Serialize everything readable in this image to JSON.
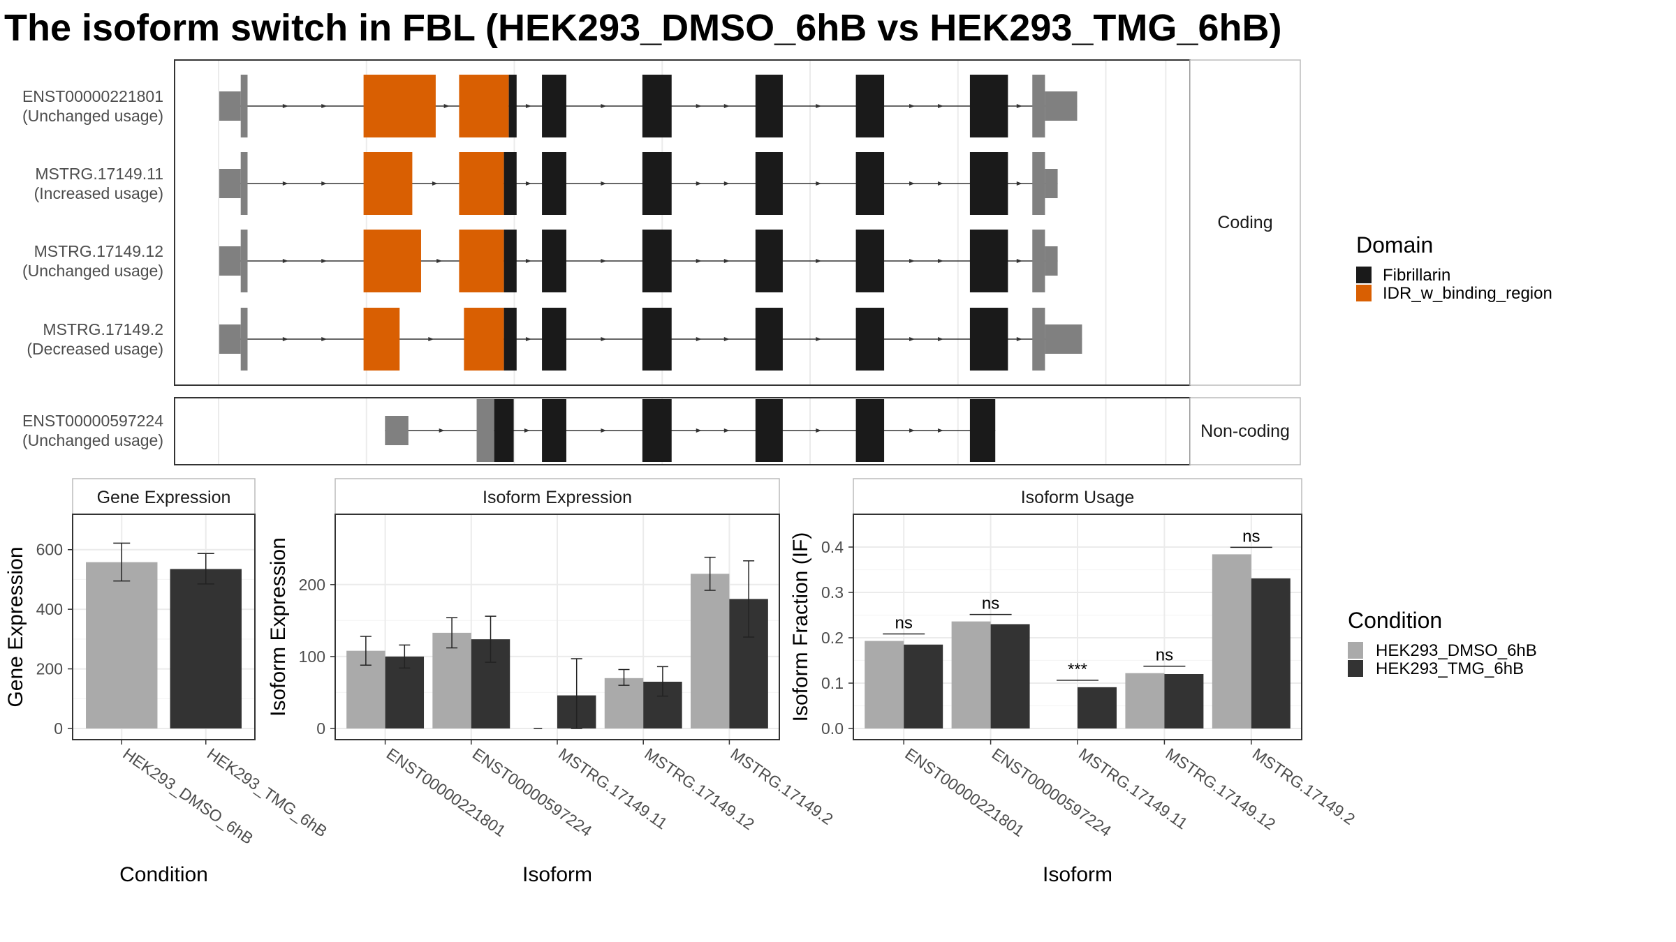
{
  "title": "The isoform switch in FBL (HEK293_DMSO_6hB vs HEK293_TMG_6hB)",
  "colors": {
    "fibrillarin": "#1a1a1a",
    "idr": "#d95f02",
    "utr": "#808080",
    "dmso": "#aaaaaa",
    "tmg": "#333333"
  },
  "structure": {
    "coding_label": "Coding",
    "noncoding_label": "Non-coding",
    "transcripts": [
      {
        "id": "ENST00000221801",
        "usage": "(Unchanged usage)",
        "group": "coding",
        "utr5": [
          [
            0,
            0.022
          ],
          [
            0.022,
            0.029
          ]
        ],
        "idr": [
          [
            0.148,
            0.222
          ],
          [
            0.246,
            0.297
          ]
        ],
        "cds": [
          [
            0.297,
            0.305
          ],
          [
            0.331,
            0.356
          ],
          [
            0.434,
            0.464
          ],
          [
            0.55,
            0.578
          ],
          [
            0.653,
            0.682
          ],
          [
            0.77,
            0.809
          ]
        ],
        "utr3": [
          [
            0.834,
            0.847
          ],
          [
            0.847,
            0.88
          ]
        ]
      },
      {
        "id": "MSTRG.17149.11",
        "usage": "(Increased usage)",
        "group": "coding",
        "utr5": [
          [
            0,
            0.022
          ],
          [
            0.022,
            0.029
          ]
        ],
        "idr": [
          [
            0.148,
            0.198
          ],
          [
            0.246,
            0.292
          ]
        ],
        "cds": [
          [
            0.292,
            0.305
          ],
          [
            0.331,
            0.356
          ],
          [
            0.434,
            0.464
          ],
          [
            0.55,
            0.578
          ],
          [
            0.653,
            0.682
          ],
          [
            0.77,
            0.809
          ]
        ],
        "utr3": [
          [
            0.834,
            0.847
          ],
          [
            0.847,
            0.86
          ]
        ]
      },
      {
        "id": "MSTRG.17149.12",
        "usage": "(Unchanged usage)",
        "group": "coding",
        "utr5": [
          [
            0,
            0.022
          ],
          [
            0.022,
            0.029
          ]
        ],
        "idr": [
          [
            0.148,
            0.207
          ],
          [
            0.246,
            0.292
          ]
        ],
        "cds": [
          [
            0.292,
            0.305
          ],
          [
            0.331,
            0.356
          ],
          [
            0.434,
            0.464
          ],
          [
            0.55,
            0.578
          ],
          [
            0.653,
            0.682
          ],
          [
            0.77,
            0.809
          ]
        ],
        "utr3": [
          [
            0.834,
            0.847
          ],
          [
            0.847,
            0.86
          ]
        ]
      },
      {
        "id": "MSTRG.17149.2",
        "usage": "(Decreased usage)",
        "group": "coding",
        "utr5": [
          [
            0,
            0.022
          ],
          [
            0.022,
            0.029
          ]
        ],
        "idr": [
          [
            0.148,
            0.185
          ],
          [
            0.251,
            0.292
          ]
        ],
        "cds": [
          [
            0.292,
            0.305
          ],
          [
            0.331,
            0.356
          ],
          [
            0.434,
            0.464
          ],
          [
            0.55,
            0.578
          ],
          [
            0.653,
            0.682
          ],
          [
            0.77,
            0.809
          ]
        ],
        "utr3": [
          [
            0.834,
            0.847
          ],
          [
            0.847,
            0.885
          ]
        ]
      },
      {
        "id": "ENST00000597224",
        "usage": "(Unchanged usage)",
        "group": "noncoding",
        "utr5": [
          [
            0.17,
            0.194
          ],
          [
            0.264,
            0.282
          ]
        ],
        "idr": [],
        "cds": [
          [
            0.282,
            0.302
          ],
          [
            0.331,
            0.356
          ],
          [
            0.434,
            0.464
          ],
          [
            0.55,
            0.578
          ],
          [
            0.653,
            0.682
          ],
          [
            0.77,
            0.796
          ]
        ],
        "utr3": []
      }
    ]
  },
  "legend_domain": {
    "title": "Domain",
    "items": [
      "Fibrillarin",
      "IDR_w_binding_region"
    ]
  },
  "legend_condition": {
    "title": "Condition",
    "items": [
      "HEK293_DMSO_6hB",
      "HEK293_TMG_6hB"
    ]
  },
  "chart_data": [
    {
      "type": "bar",
      "title": "Gene Expression",
      "xlabel": "Condition",
      "ylabel": "Gene Expression",
      "categories": [
        "HEK293_DMSO_6hB",
        "HEK293_TMG_6hB"
      ],
      "values": [
        558,
        535
      ],
      "error_low": [
        495,
        485
      ],
      "error_high": [
        622,
        587
      ],
      "ylim": [
        0,
        700
      ],
      "yticks": [
        0,
        200,
        400,
        600
      ]
    },
    {
      "type": "bar",
      "title": "Isoform Expression",
      "xlabel": "Isoform",
      "ylabel": "Isoform Expression",
      "categories": [
        "ENST00000221801",
        "ENST00000597224",
        "MSTRG.17149.11",
        "MSTRG.17149.12",
        "MSTRG.17149.2"
      ],
      "series": [
        {
          "values": [
            108,
            133,
            0,
            70,
            215
          ],
          "error_low": [
            88,
            112,
            0,
            60,
            192
          ],
          "error_high": [
            128,
            154,
            0,
            82,
            238
          ]
        },
        {
          "values": [
            100,
            124,
            46,
            65,
            180
          ],
          "error_low": [
            84,
            92,
            0,
            45,
            127
          ],
          "error_high": [
            116,
            156,
            97,
            86,
            233
          ]
        }
      ],
      "ylim": [
        0,
        290
      ],
      "yticks": [
        0,
        100,
        200
      ]
    },
    {
      "type": "bar",
      "title": "Isoform Usage",
      "xlabel": "Isoform",
      "ylabel": "Isoform Fraction (IF)",
      "categories": [
        "ENST00000221801",
        "ENST00000597224",
        "MSTRG.17149.11",
        "MSTRG.17149.12",
        "MSTRG.17149.2"
      ],
      "series": [
        {
          "values": [
            0.193,
            0.236,
            0.0,
            0.122,
            0.384
          ]
        },
        {
          "values": [
            0.185,
            0.23,
            0.091,
            0.12,
            0.331
          ]
        }
      ],
      "significance": [
        "ns",
        "ns",
        "***",
        "ns",
        "ns"
      ],
      "ylim": [
        0,
        0.46
      ],
      "yticks": [
        0.0,
        0.1,
        0.2,
        0.3,
        0.4
      ],
      "ytick_labels": [
        "0.0",
        "0.1",
        "0.2",
        "0.3",
        "0.4"
      ]
    }
  ]
}
